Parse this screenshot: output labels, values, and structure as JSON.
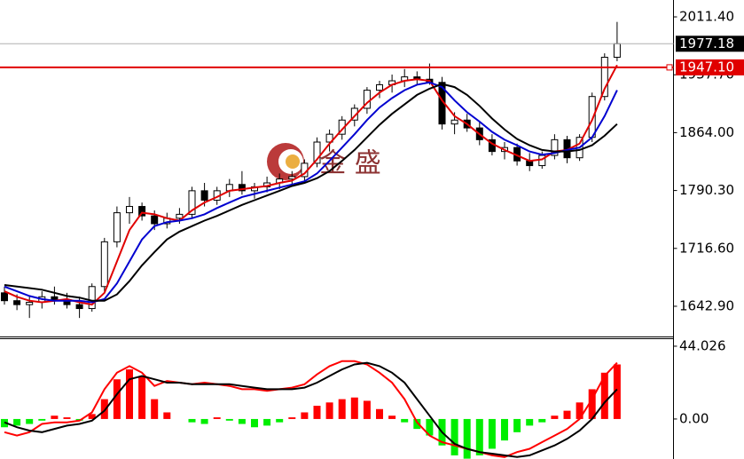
{
  "chart_data": [
    {
      "type": "candlestick",
      "ylim": [
        1603.3,
        2032.9
      ],
      "yticks": [
        {
          "value": 2011.4,
          "label": "2011.40"
        },
        {
          "value": 1937.7,
          "label": "1937.70"
        },
        {
          "value": 1864,
          "label": "1864.00"
        },
        {
          "value": 1790.3,
          "label": "1790.30"
        },
        {
          "value": 1716.6,
          "label": "1716.60"
        },
        {
          "value": 1642.9,
          "label": "1642.90"
        }
      ],
      "current_price": {
        "value": 1977.18,
        "label": "1977.18"
      },
      "level": {
        "value": 1947.1,
        "label": "1947.10",
        "color": "#e00000"
      },
      "watermark": "金 盛",
      "open": [
        1660,
        1650,
        1645,
        1648,
        1655,
        1650,
        1645,
        1640,
        1668,
        1725,
        1762,
        1770,
        1758,
        1748,
        1755,
        1760,
        1790,
        1778,
        1790,
        1798,
        1790,
        1795,
        1800,
        1805,
        1808,
        1825,
        1852,
        1862,
        1880,
        1895,
        1918,
        1925,
        1930,
        1935,
        1932,
        1928,
        1875,
        1880,
        1870,
        1855,
        1840,
        1845,
        1828,
        1822,
        1835,
        1855,
        1832,
        1858,
        1910,
        1960
      ],
      "high": [
        1668,
        1658,
        1655,
        1662,
        1668,
        1660,
        1655,
        1672,
        1730,
        1770,
        1782,
        1775,
        1765,
        1762,
        1768,
        1795,
        1800,
        1795,
        1805,
        1815,
        1800,
        1808,
        1812,
        1815,
        1830,
        1858,
        1868,
        1885,
        1900,
        1922,
        1930,
        1938,
        1945,
        1942,
        1952,
        1935,
        1890,
        1888,
        1878,
        1862,
        1852,
        1850,
        1838,
        1840,
        1862,
        1860,
        1862,
        1915,
        1965,
        2005
      ],
      "low": [
        1645,
        1638,
        1628,
        1640,
        1645,
        1640,
        1628,
        1636,
        1662,
        1718,
        1748,
        1752,
        1740,
        1742,
        1748,
        1755,
        1770,
        1772,
        1782,
        1785,
        1780,
        1788,
        1792,
        1796,
        1800,
        1820,
        1840,
        1855,
        1872,
        1888,
        1908,
        1915,
        1922,
        1925,
        1925,
        1868,
        1862,
        1865,
        1848,
        1835,
        1830,
        1822,
        1815,
        1818,
        1830,
        1825,
        1828,
        1852,
        1905,
        1955
      ],
      "close": [
        1650,
        1645,
        1648,
        1655,
        1650,
        1645,
        1640,
        1668,
        1725,
        1762,
        1770,
        1758,
        1748,
        1755,
        1760,
        1790,
        1778,
        1790,
        1798,
        1790,
        1795,
        1800,
        1805,
        1808,
        1825,
        1852,
        1862,
        1880,
        1895,
        1918,
        1925,
        1930,
        1935,
        1932,
        1928,
        1875,
        1880,
        1870,
        1855,
        1840,
        1845,
        1828,
        1822,
        1835,
        1855,
        1832,
        1858,
        1910,
        1960,
        1977.18
      ],
      "overlays": [
        {
          "color": "#e00000",
          "values": [
            1662,
            1655,
            1650,
            1648,
            1650,
            1652,
            1648,
            1645,
            1660,
            1700,
            1740,
            1762,
            1760,
            1755,
            1752,
            1765,
            1775,
            1782,
            1790,
            1792,
            1794,
            1796,
            1800,
            1803,
            1812,
            1830,
            1850,
            1868,
            1885,
            1902,
            1915,
            1925,
            1930,
            1932,
            1930,
            1905,
            1885,
            1875,
            1862,
            1850,
            1842,
            1835,
            1828,
            1830,
            1840,
            1842,
            1850,
            1880,
            1920,
            1950
          ]
        },
        {
          "color": "#0000d0",
          "values": [
            1668,
            1662,
            1656,
            1652,
            1650,
            1650,
            1650,
            1648,
            1652,
            1672,
            1700,
            1728,
            1745,
            1750,
            1752,
            1755,
            1760,
            1768,
            1775,
            1782,
            1786,
            1790,
            1794,
            1798,
            1802,
            1812,
            1828,
            1845,
            1862,
            1880,
            1896,
            1908,
            1918,
            1925,
            1928,
            1922,
            1905,
            1890,
            1878,
            1865,
            1855,
            1848,
            1840,
            1836,
            1838,
            1842,
            1845,
            1858,
            1885,
            1918
          ]
        },
        {
          "color": "#000000",
          "values": [
            1670,
            1668,
            1666,
            1664,
            1660,
            1656,
            1654,
            1650,
            1650,
            1658,
            1675,
            1695,
            1712,
            1728,
            1738,
            1745,
            1752,
            1758,
            1765,
            1772,
            1778,
            1784,
            1790,
            1796,
            1800,
            1806,
            1815,
            1828,
            1842,
            1858,
            1874,
            1888,
            1900,
            1912,
            1920,
            1926,
            1922,
            1912,
            1898,
            1882,
            1868,
            1856,
            1848,
            1842,
            1840,
            1840,
            1842,
            1848,
            1860,
            1875
          ]
        }
      ]
    },
    {
      "type": "macd",
      "ylim": [
        -24.2,
        48.3
      ],
      "yticks": [
        {
          "value": 44.026,
          "label": "44.026"
        },
        {
          "value": 0,
          "label": "0.00"
        }
      ],
      "up_color": "#ff0000",
      "down_color": "#00ee00",
      "values": [
        -5,
        -4,
        -3,
        -1,
        2,
        1,
        -1,
        3,
        12,
        24,
        30,
        26,
        12,
        4,
        0,
        -2,
        -3,
        1,
        -1,
        -3,
        -5,
        -4,
        -2,
        1,
        4,
        8,
        10,
        12,
        13,
        11,
        6,
        2,
        -2,
        -6,
        -10,
        -16,
        -22,
        -24,
        -22,
        -18,
        -13,
        -8,
        -4,
        -2,
        2,
        5,
        10,
        18,
        28,
        33
      ],
      "lines": [
        {
          "color": "#ff0000",
          "values": [
            -8,
            -10,
            -8,
            -3,
            -2,
            -2,
            -1,
            4,
            18,
            28,
            32,
            28,
            20,
            23,
            22,
            21,
            22,
            21,
            20,
            18,
            18,
            17,
            18,
            19,
            21,
            27,
            32,
            35,
            35,
            33,
            28,
            22,
            12,
            -2,
            -10,
            -14,
            -16,
            -18,
            -20,
            -22,
            -23,
            -20,
            -18,
            -14,
            -10,
            -6,
            0,
            12,
            26,
            34
          ]
        },
        {
          "color": "#000000",
          "values": [
            -2,
            -5,
            -7,
            -8,
            -6,
            -4,
            -3,
            -1,
            5,
            15,
            24,
            26,
            24,
            22,
            22,
            21,
            21,
            21,
            21,
            20,
            19,
            18,
            18,
            18,
            19,
            22,
            26,
            30,
            33,
            34,
            32,
            28,
            22,
            12,
            2,
            -8,
            -15,
            -18,
            -20,
            -21,
            -22,
            -23,
            -22,
            -19,
            -16,
            -12,
            -7,
            0,
            10,
            18
          ]
        }
      ]
    }
  ]
}
